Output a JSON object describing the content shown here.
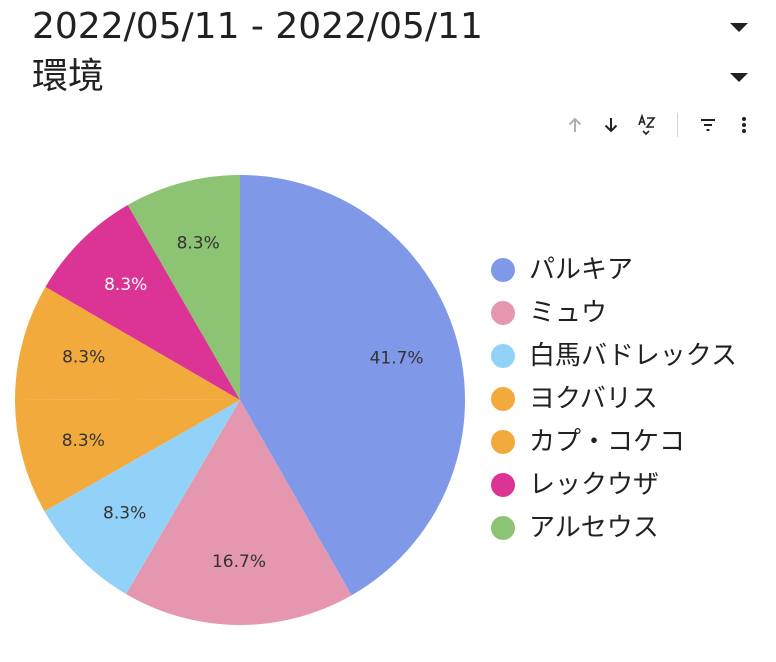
{
  "header": {
    "date_range": "2022/05/11 - 2022/05/11",
    "environment": "環境"
  },
  "toolbar": {
    "icons": [
      "arrow-up-icon",
      "arrow-down-icon",
      "sort-az-icon",
      "filter-icon",
      "more-vert-icon"
    ]
  },
  "chart_data": {
    "type": "pie",
    "title": "",
    "slices": [
      {
        "label": "パルキア",
        "percent": 41.7,
        "display": "41.7%",
        "color": "#7F98E7",
        "label_color": "#333333"
      },
      {
        "label": "ミュウ",
        "percent": 16.7,
        "display": "16.7%",
        "color": "#E697B0",
        "label_color": "#333333"
      },
      {
        "label": "白馬バドレックス",
        "percent": 8.3,
        "display": "8.3%",
        "color": "#92D2F8",
        "label_color": "#333333"
      },
      {
        "label": "ヨクバリス",
        "percent": 8.3,
        "display": "8.3%",
        "color": "#F2AA3D",
        "label_color": "#333333"
      },
      {
        "label": "カプ・コケコ",
        "percent": 8.3,
        "display": "8.3%",
        "color": "#F2AA3D",
        "label_color": "#333333"
      },
      {
        "label": "レックウザ",
        "percent": 8.3,
        "display": "8.3%",
        "color": "#DB3495",
        "label_color": "#ffffff"
      },
      {
        "label": "アルセウス",
        "percent": 8.3,
        "display": "8.3%",
        "color": "#8CC474",
        "label_color": "#333333"
      }
    ],
    "legend_position": "right"
  }
}
